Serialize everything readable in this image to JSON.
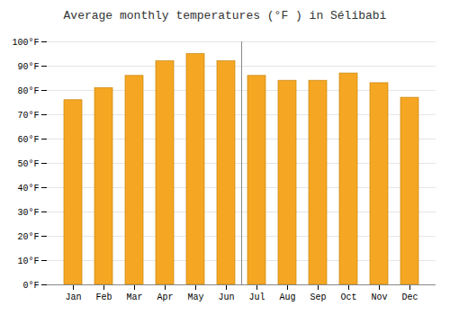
{
  "chart_data": {
    "type": "bar",
    "title": "Average monthly temperatures (°F ) in Sélibabi",
    "categories": [
      "Jan",
      "Feb",
      "Mar",
      "Apr",
      "May",
      "Jun",
      "Jul",
      "Aug",
      "Sep",
      "Oct",
      "Nov",
      "Dec"
    ],
    "values": [
      76,
      81,
      86,
      92,
      95,
      92,
      86,
      84,
      84,
      87,
      83,
      77
    ],
    "color": "#F5A623",
    "ylim": [
      0,
      100
    ],
    "yticks": [
      {
        "value": 0,
        "label": "0°F"
      },
      {
        "value": 10,
        "label": "10°F"
      },
      {
        "value": 20,
        "label": "20°F"
      },
      {
        "value": 30,
        "label": "30°F"
      },
      {
        "value": 40,
        "label": "40°F"
      },
      {
        "value": 50,
        "label": "50°F"
      },
      {
        "value": 60,
        "label": "60°F"
      },
      {
        "value": 70,
        "label": "70°F"
      },
      {
        "value": 80,
        "label": "80°F"
      },
      {
        "value": 90,
        "label": "90°F"
      },
      {
        "value": 100,
        "label": "100°F"
      }
    ],
    "grid": true
  }
}
